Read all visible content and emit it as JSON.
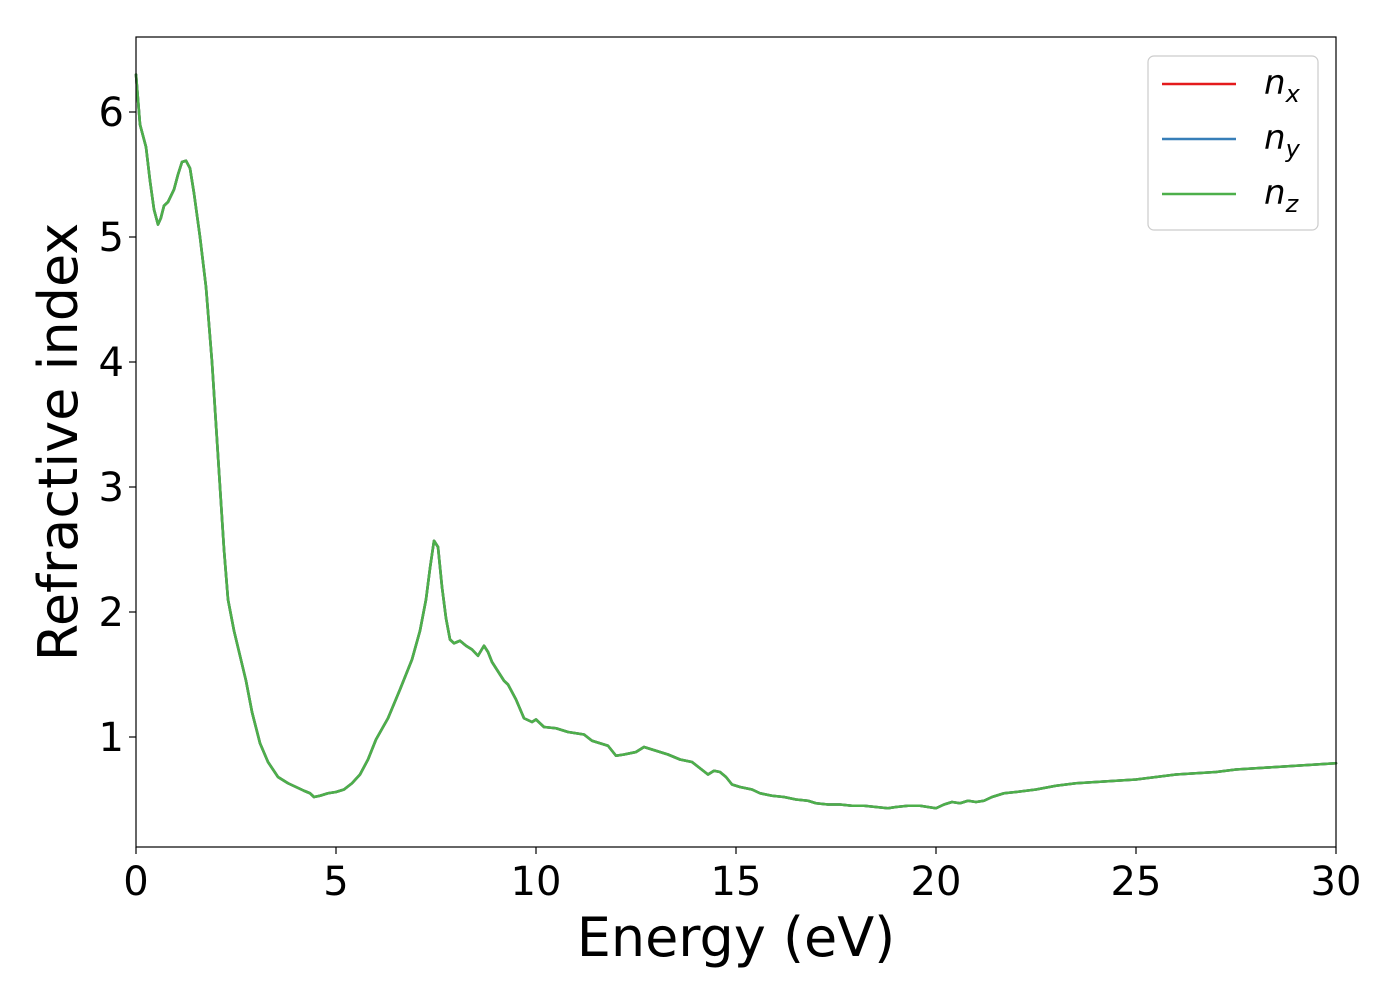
{
  "chart_data": {
    "type": "line",
    "title": "",
    "xlabel": "Energy (eV)",
    "ylabel": "Refractive index",
    "xlim": [
      0,
      30
    ],
    "ylim": [
      0.12,
      6.6
    ],
    "xticks": [
      0,
      5,
      10,
      15,
      20,
      25,
      30
    ],
    "yticks": [
      1,
      2,
      3,
      4,
      5,
      6
    ],
    "grid": false,
    "legend_position": "top-right",
    "series": [
      {
        "name": "n",
        "subscript": "x",
        "color": "#e41a1c"
      },
      {
        "name": "n",
        "subscript": "y",
        "color": "#377eb8"
      },
      {
        "name": "n",
        "subscript": "z",
        "color": "#4daf4a"
      }
    ],
    "x": [
      0,
      0.1,
      0.25,
      0.35,
      0.45,
      0.55,
      0.62,
      0.7,
      0.8,
      0.95,
      1.05,
      1.15,
      1.25,
      1.35,
      1.45,
      1.6,
      1.75,
      1.9,
      2.0,
      2.1,
      2.2,
      2.3,
      2.45,
      2.6,
      2.75,
      2.9,
      3.1,
      3.3,
      3.55,
      3.8,
      4.0,
      4.2,
      4.35,
      4.45,
      4.6,
      4.8,
      5.0,
      5.2,
      5.4,
      5.6,
      5.8,
      6.0,
      6.3,
      6.6,
      6.9,
      7.1,
      7.25,
      7.35,
      7.45,
      7.55,
      7.65,
      7.75,
      7.85,
      7.95,
      8.1,
      8.25,
      8.4,
      8.55,
      8.7,
      8.8,
      8.9,
      9.0,
      9.1,
      9.2,
      9.3,
      9.5,
      9.7,
      9.9,
      10.0,
      10.2,
      10.5,
      10.8,
      11.0,
      11.2,
      11.4,
      11.6,
      11.8,
      12.0,
      12.2,
      12.5,
      12.7,
      12.9,
      13.1,
      13.3,
      13.6,
      13.9,
      14.1,
      14.3,
      14.45,
      14.6,
      14.75,
      14.9,
      15.1,
      15.4,
      15.6,
      15.9,
      16.2,
      16.5,
      16.8,
      17.0,
      17.3,
      17.6,
      17.9,
      18.2,
      18.5,
      18.8,
      19.0,
      19.3,
      19.6,
      19.8,
      20.0,
      20.2,
      20.4,
      20.6,
      20.8,
      21.0,
      21.2,
      21.4,
      21.7,
      22.0,
      22.5,
      23.0,
      23.5,
      24.0,
      24.5,
      25.0,
      25.5,
      26.0,
      26.5,
      27.0,
      27.5,
      28.0,
      28.5,
      29.0,
      29.5,
      30.0
    ],
    "y": [
      6.3,
      5.9,
      5.72,
      5.45,
      5.22,
      5.1,
      5.15,
      5.25,
      5.28,
      5.38,
      5.5,
      5.6,
      5.61,
      5.55,
      5.35,
      5.0,
      4.6,
      4.0,
      3.5,
      3.0,
      2.5,
      2.1,
      1.85,
      1.65,
      1.45,
      1.2,
      0.95,
      0.8,
      0.68,
      0.63,
      0.6,
      0.57,
      0.55,
      0.52,
      0.53,
      0.55,
      0.56,
      0.58,
      0.63,
      0.7,
      0.82,
      0.98,
      1.15,
      1.38,
      1.62,
      1.85,
      2.1,
      2.35,
      2.57,
      2.52,
      2.2,
      1.95,
      1.78,
      1.75,
      1.77,
      1.73,
      1.7,
      1.65,
      1.73,
      1.68,
      1.6,
      1.55,
      1.5,
      1.45,
      1.42,
      1.3,
      1.15,
      1.12,
      1.14,
      1.08,
      1.07,
      1.04,
      1.03,
      1.02,
      0.97,
      0.95,
      0.93,
      0.85,
      0.86,
      0.88,
      0.92,
      0.9,
      0.88,
      0.86,
      0.82,
      0.8,
      0.75,
      0.7,
      0.73,
      0.72,
      0.68,
      0.62,
      0.6,
      0.58,
      0.55,
      0.53,
      0.52,
      0.5,
      0.49,
      0.47,
      0.46,
      0.46,
      0.45,
      0.45,
      0.44,
      0.43,
      0.44,
      0.45,
      0.45,
      0.44,
      0.43,
      0.46,
      0.48,
      0.47,
      0.49,
      0.48,
      0.49,
      0.52,
      0.55,
      0.56,
      0.58,
      0.61,
      0.63,
      0.64,
      0.65,
      0.66,
      0.68,
      0.7,
      0.71,
      0.72,
      0.74,
      0.75,
      0.76,
      0.77,
      0.78,
      0.79
    ]
  }
}
